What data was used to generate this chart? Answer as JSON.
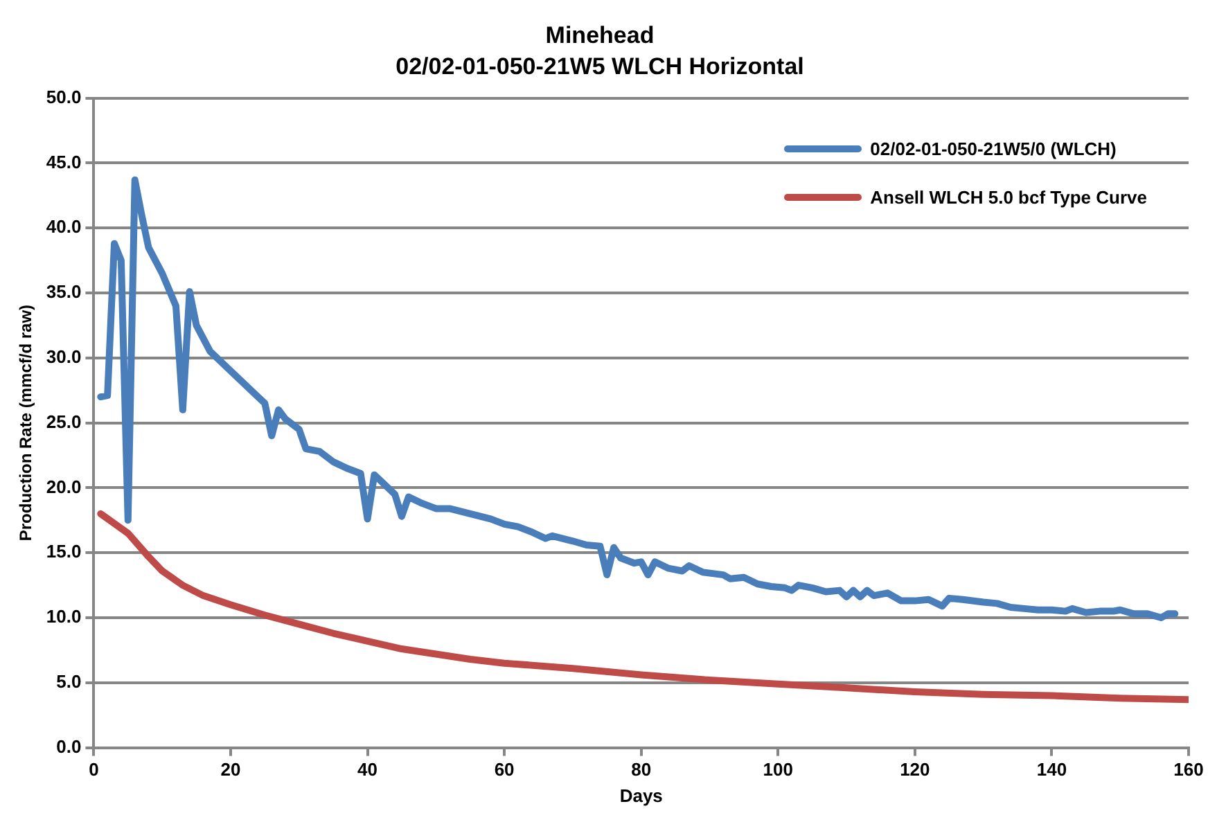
{
  "chart_data": {
    "type": "line",
    "title": "Minehead",
    "subtitle": "02/02-01-050-21W5 WLCH Horizontal",
    "xlabel": "Days",
    "ylabel": "Production Rate (mmcf/d raw)",
    "xlim": [
      0,
      160
    ],
    "xticks": [
      0,
      20,
      40,
      60,
      80,
      100,
      120,
      140,
      160
    ],
    "ylim": [
      0,
      50
    ],
    "yticks": [
      {
        "value": 0,
        "label": "0.0"
      },
      {
        "value": 5,
        "label": "5.0"
      },
      {
        "value": 10,
        "label": "10.0"
      },
      {
        "value": 15,
        "label": "15.0"
      },
      {
        "value": 20,
        "label": "20.0"
      },
      {
        "value": 25,
        "label": "25.0"
      },
      {
        "value": 30,
        "label": "30.0"
      },
      {
        "value": 35,
        "label": "35.0"
      },
      {
        "value": 40,
        "label": "40.0"
      },
      {
        "value": 45,
        "label": "45.0"
      },
      {
        "value": 50,
        "label": "50.0"
      }
    ],
    "grid": "y",
    "legend": "top right",
    "marker": "none",
    "line_style": "solid",
    "series": [
      {
        "name": "02/02-01-050-21W5/0 (WLCH)",
        "color": "#4a7ebb",
        "x": [
          1,
          2,
          3,
          4,
          5,
          6,
          7,
          8,
          10,
          12,
          13,
          14,
          15,
          17,
          20,
          22,
          24,
          25,
          26,
          27,
          28,
          30,
          31,
          33,
          35,
          37,
          39,
          40,
          41,
          43,
          44,
          45,
          46,
          48,
          50,
          52,
          55,
          58,
          60,
          62,
          64,
          66,
          67,
          70,
          72,
          74,
          75,
          76,
          77,
          79,
          80,
          81,
          82,
          84,
          86,
          87,
          89,
          92,
          93,
          95,
          97,
          99,
          101,
          102,
          103,
          105,
          107,
          109,
          110,
          111,
          112,
          113,
          114,
          116,
          118,
          120,
          122,
          124,
          125,
          127,
          130,
          132,
          134,
          136,
          138,
          140,
          142,
          143,
          145,
          147,
          149,
          150,
          152,
          154,
          156,
          157,
          158
        ],
        "values": [
          27.0,
          27.1,
          38.8,
          37.5,
          17.5,
          43.7,
          41,
          38.5,
          36.5,
          34,
          26,
          35.1,
          32.5,
          30.5,
          29,
          28,
          27,
          26.5,
          24,
          26,
          25.3,
          24.5,
          23,
          22.8,
          22,
          21.5,
          21.1,
          17.6,
          21.0,
          20.0,
          19.5,
          17.8,
          19.3,
          18.8,
          18.4,
          18.4,
          18,
          17.6,
          17.2,
          17,
          16.6,
          16.1,
          16.3,
          15.9,
          15.6,
          15.5,
          13.3,
          15.4,
          14.6,
          14.2,
          14.3,
          13.3,
          14.3,
          13.8,
          13.6,
          14.0,
          13.5,
          13.3,
          13.0,
          13.1,
          12.6,
          12.4,
          12.3,
          12.1,
          12.5,
          12.3,
          12.0,
          12.1,
          11.6,
          12.1,
          11.6,
          12.1,
          11.7,
          11.9,
          11.3,
          11.3,
          11.4,
          10.9,
          11.5,
          11.4,
          11.2,
          11.1,
          10.8,
          10.7,
          10.6,
          10.6,
          10.5,
          10.7,
          10.4,
          10.5,
          10.5,
          10.6,
          10.3,
          10.3,
          10.0,
          10.3,
          10.3
        ]
      },
      {
        "name": "Ansell WLCH 5.0 bcf Type Curve",
        "color": "#be4b48",
        "x": [
          1,
          5,
          8,
          10,
          13,
          16,
          20,
          25,
          30,
          35,
          40,
          45,
          50,
          55,
          60,
          70,
          80,
          90,
          100,
          110,
          120,
          130,
          140,
          150,
          160
        ],
        "values": [
          18,
          16.5,
          14.7,
          13.6,
          12.5,
          11.7,
          11.0,
          10.2,
          9.5,
          8.8,
          8.2,
          7.6,
          7.2,
          6.8,
          6.5,
          6.1,
          5.6,
          5.2,
          4.9,
          4.6,
          4.3,
          4.1,
          4.0,
          3.8,
          3.7
        ]
      }
    ]
  }
}
